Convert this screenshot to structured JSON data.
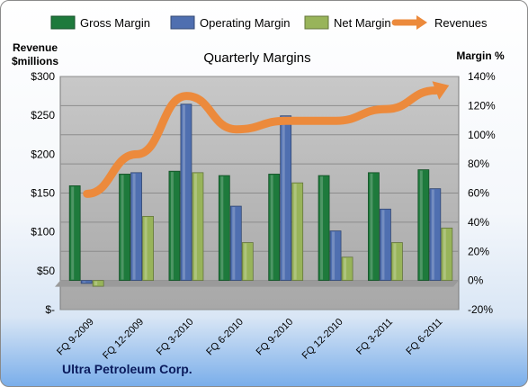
{
  "chart_data": {
    "type": "bar",
    "title": "Quarterly Margins",
    "footer": "Ultra Petroleum Corp.",
    "left_axis": {
      "label_line1": "Revenue",
      "label_line2": "$millions",
      "ticks": [
        "$300",
        "$250",
        "$200",
        "$150",
        "$100",
        "$50",
        "$-"
      ],
      "range": [
        0,
        300
      ]
    },
    "right_axis": {
      "label": "Margin %",
      "ticks": [
        "140%",
        "120%",
        "100%",
        "80%",
        "60%",
        "40%",
        "20%",
        "0%",
        "-20%"
      ],
      "range": [
        -20,
        140
      ]
    },
    "categories": [
      "FQ 9-2009",
      "FQ 12-2009",
      "FQ 3-2010",
      "FQ 6-2010",
      "FQ 9-2010",
      "FQ 12-2010",
      "FQ 3-2011",
      "FQ 6-2011"
    ],
    "series": [
      {
        "name": "Gross Margin",
        "axis": "right",
        "kind": "bar",
        "color": "#1e7a3c",
        "values": [
          65,
          73,
          75,
          72,
          73,
          72,
          74,
          76
        ]
      },
      {
        "name": "Operating Margin",
        "axis": "right",
        "kind": "bar",
        "color": "#4f6fb0",
        "values": [
          -2,
          74,
          121,
          51,
          113,
          34,
          49,
          63
        ]
      },
      {
        "name": "Net Margin",
        "axis": "right",
        "kind": "bar",
        "color": "#98b45a",
        "values": [
          -4,
          44,
          74,
          26,
          67,
          16,
          26,
          36
        ]
      },
      {
        "name": "Revenues",
        "axis": "left",
        "kind": "line",
        "color": "#ec8a3c",
        "values": [
          149,
          200,
          275,
          232,
          243,
          243,
          258,
          282
        ]
      }
    ],
    "legend_position": "top"
  }
}
